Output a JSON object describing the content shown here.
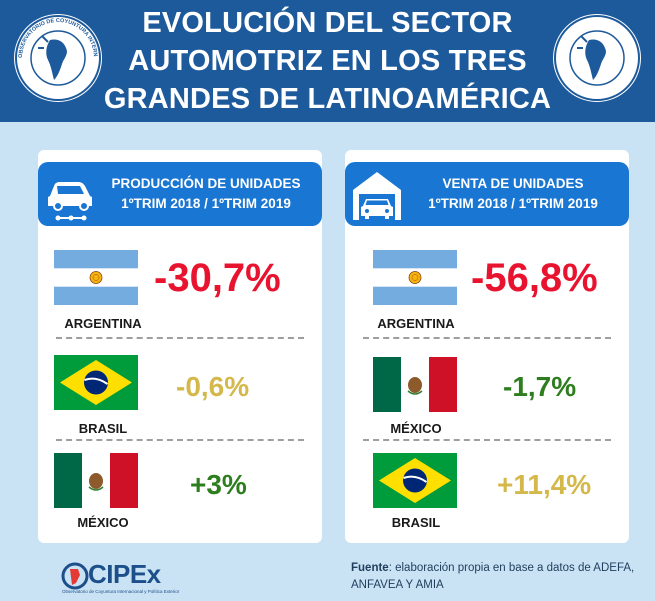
{
  "header": {
    "title_line1": "EVOLUCIÓN DEL SECTOR",
    "title_line2": "AUTOMOTRIZ EN LOS TRES",
    "title_line3": "GRANDES DE LATINOAMÉRICA",
    "seal_text": "OBSERVATORIO DE COYUNTURA INTERNACIONAL Y POLÍTICA EXTERIOR"
  },
  "production": {
    "heading_line1": "PRODUCCIÓN DE UNIDADES",
    "heading_line2": "1ºTRIM 2018 / 1ºTRIM 2019",
    "rows": [
      {
        "country": "ARGENTINA",
        "value": "-30,7%",
        "color": "#e8142f"
      },
      {
        "country": "BRASIL",
        "value": "-0,6%",
        "color": "#d4b84a"
      },
      {
        "country": "MÉXICO",
        "value": "+3%",
        "color": "#2e7d1e"
      }
    ]
  },
  "sales": {
    "heading_line1": "VENTA DE UNIDADES",
    "heading_line2": "1ºTRIM 2018 / 1ºTRIM 2019",
    "rows": [
      {
        "country": "ARGENTINA",
        "value": "-56,8%",
        "color": "#e8142f"
      },
      {
        "country": "MÉXICO",
        "value": "-1,7%",
        "color": "#2e7d1e"
      },
      {
        "country": "BRASIL",
        "value": "+11,4%",
        "color": "#d4b84a"
      }
    ]
  },
  "footer": {
    "logo": "CIPEx",
    "logo_subtitle": "Observatorio de Coyuntura Internacional y Política Exterior",
    "source_label": "Fuente",
    "source_text": ": elaboración propia en base a datos de ADEFA, ANFAVEA Y AMIA"
  },
  "colors": {
    "header_bg": "#1d5a9b",
    "badge_bg": "#1976d2",
    "page_bg": "#c9e2f4"
  }
}
